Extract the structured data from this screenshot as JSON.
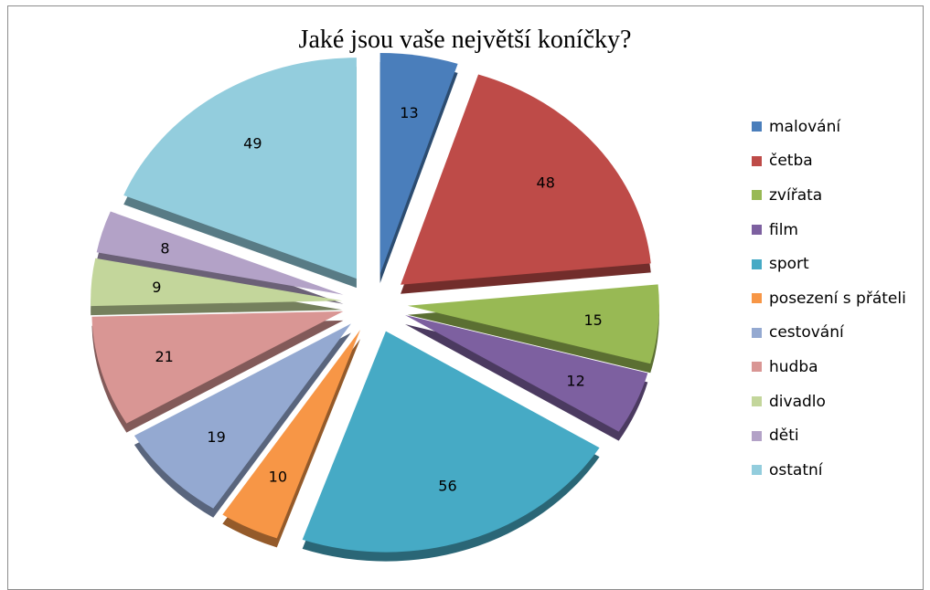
{
  "chart_data": {
    "type": "pie",
    "title": "Jaké jsou vaše největší koníčky?",
    "categories": [
      "malování",
      "četba",
      "zvířata",
      "film",
      "sport",
      "posezení s přáteli",
      "cestování",
      "hudba",
      "divadlo",
      "děti",
      "ostatní"
    ],
    "values": [
      13,
      48,
      15,
      12,
      56,
      10,
      19,
      21,
      9,
      8,
      49
    ],
    "colors": [
      "#4a7ebb",
      "#be4b48",
      "#98b954",
      "#7d60a0",
      "#46aac5",
      "#f79646",
      "#94a9d1",
      "#d99694",
      "#c3d69b",
      "#b3a2c7",
      "#93cddd"
    ],
    "exploded": true,
    "legend_position": "right"
  }
}
